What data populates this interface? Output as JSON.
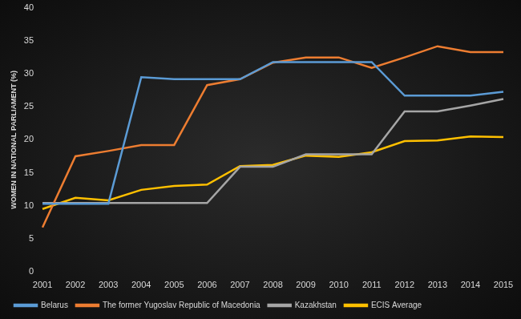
{
  "chart_data": {
    "type": "line",
    "y_label": "WOMEN IN NATIONAL PARLIAMENT (%)",
    "categories": [
      "2001",
      "2002",
      "2003",
      "2004",
      "2005",
      "2006",
      "2007",
      "2008",
      "2009",
      "2010",
      "2011",
      "2012",
      "2013",
      "2014",
      "2015"
    ],
    "series": [
      {
        "name": "Belarus",
        "color": "#5b9bd5",
        "values": [
          10.3,
          10.3,
          10.3,
          29.5,
          29.2,
          29.2,
          29.2,
          31.8,
          31.8,
          31.8,
          31.8,
          26.7,
          26.7,
          26.7,
          27.3
        ]
      },
      {
        "name": "The former Yugoslav Republic of Macedonia",
        "color": "#ed7d31",
        "values": [
          6.7,
          17.5,
          18.3,
          19.2,
          19.2,
          28.3,
          29.2,
          31.7,
          32.5,
          32.5,
          30.9,
          32.5,
          34.2,
          33.3,
          33.3
        ]
      },
      {
        "name": "Kazakhstan",
        "color": "#a5a5a5",
        "values": [
          10.4,
          10.4,
          10.4,
          10.4,
          10.4,
          10.4,
          15.9,
          15.9,
          17.8,
          17.8,
          17.8,
          24.3,
          24.3,
          25.2,
          26.2
        ]
      },
      {
        "name": "ECIS Average",
        "color": "#ffc000",
        "values": [
          9.5,
          11.2,
          10.8,
          12.4,
          13.0,
          13.2,
          16.0,
          16.2,
          17.6,
          17.4,
          18.1,
          19.8,
          19.9,
          20.5,
          20.4
        ]
      }
    ],
    "ylim": [
      0,
      40
    ],
    "yticks": [
      0,
      5,
      10,
      15,
      20,
      25,
      30,
      35,
      40
    ],
    "grid": false,
    "legend": "bottom"
  }
}
